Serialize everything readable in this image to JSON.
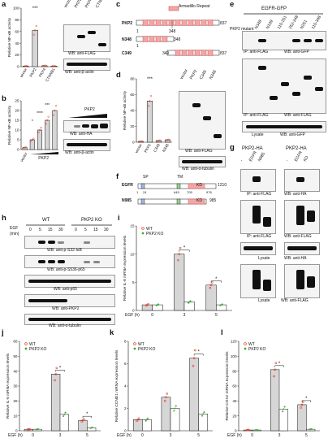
{
  "panels": {
    "a": {
      "letter": "a",
      "ylabel": "Relative NF-κB activity",
      "significance": "***",
      "blot_lanes": [
        "vector",
        "PKP2",
        "PKP4",
        "CTNNB1"
      ],
      "wb_top": "WB: anti-FLAG",
      "wb_bottom": "WB: anti-β-actin"
    },
    "b": {
      "letter": "b",
      "ylabel": "Relative NF-κB activity",
      "xlabel_vector": "vector",
      "xlabel_group": "PKP2",
      "sig": [
        "*",
        "****",
        "***"
      ],
      "blot_label": "PKP2",
      "wb_top": "WB: anti-HA",
      "wb_bottom": "WB: anti-β-actin"
    },
    "c": {
      "letter": "c",
      "legend": "Armadillo Repeat",
      "constructs": [
        {
          "name": "PKP2",
          "start": "1",
          "end": "837"
        },
        {
          "name": "N348",
          "start": "1",
          "end": "348"
        },
        {
          "name": "C349",
          "start": "349",
          "end": "837"
        }
      ],
      "tick_348": "348"
    },
    "d": {
      "letter": "d",
      "ylabel": "Relative NF-κB activity",
      "significance": "***",
      "blot_lanes": [
        "vector",
        "PKP2",
        "C349",
        "N348"
      ],
      "wb_top": "WB: anti-FLAG",
      "wb_bottom": "WB: anti-α-tubulin"
    },
    "e": {
      "letter": "e",
      "title": "EGFR-GFP",
      "row_label": "PKP2 mutant",
      "lanes": [
        "-",
        "N348",
        "N109",
        "110-251",
        "252-348",
        "N251",
        "110-348"
      ],
      "wb1": "IP: anti-FLAG",
      "wb1b": "WB: anti-GFP",
      "wb2": "IP: anti-FLAG",
      "wb2b": "WB: anti-FLAG",
      "wb3": "Lysate",
      "wb3b": "WB: anti-GFP"
    },
    "f": {
      "letter": "f",
      "constructs": [
        {
          "name": "EGFR",
          "start": "1",
          "end": "1210",
          "domain": "KD",
          "sp": "SP",
          "tm": "TM",
          "ticks": [
            "24",
            "645",
            "705",
            "978"
          ]
        },
        {
          "name": "N985",
          "end": "985",
          "domain": "KD"
        }
      ]
    },
    "g": {
      "letter": "g",
      "left_title": "PKP2-HA",
      "right_title": "PKP2-HA",
      "left_lanes": [
        "-",
        "EGFR",
        "N985"
      ],
      "right_lanes": [
        "-",
        "EGFR",
        "KD"
      ],
      "wb1": "IP: anti-FLAG",
      "wb1b": "WB: anti-HA",
      "wb2": "IP: anti-FLAG",
      "wb2b": "WB: anti-FLAG",
      "wb3": "Lysate",
      "wb3b": "WB: anti-HA",
      "wb4": "Lysate",
      "wb4b": "WB: anti-FLAG"
    },
    "h": {
      "letter": "h",
      "egf_label": "EGF",
      "min_label": "(min)",
      "wt": "WT",
      "ko": "PKP2 KO",
      "times": [
        "0",
        "5",
        "15",
        "30",
        "0",
        "5",
        "15",
        "30"
      ],
      "wb": [
        "WB: anti-p-S32-IκB",
        "WB: anti-p-S536-p65",
        "WB: anti-p65",
        "WB: anti-PKP2",
        "WB: anti-α-tubulin"
      ]
    }
  },
  "chart_data": [
    {
      "panel": "a",
      "type": "bar",
      "categories": [
        "vector",
        "PKP2",
        "PKP4",
        "CTNNB1"
      ],
      "values": [
        1,
        62,
        1.5,
        1
      ],
      "ylim": [
        0,
        100
      ],
      "ylabel": "Relative NF-κB activity",
      "yticks": [
        0,
        20,
        40,
        60,
        80,
        100
      ]
    },
    {
      "panel": "b",
      "type": "bar",
      "categories": [
        "vector",
        "1",
        "2",
        "3",
        "4"
      ],
      "values": [
        1,
        5,
        10,
        15,
        20
      ],
      "ylim": [
        0,
        25
      ],
      "ylabel": "Relative NF-κB activity",
      "yticks": [
        0,
        5,
        10,
        15,
        20,
        25
      ]
    },
    {
      "panel": "d",
      "type": "bar",
      "categories": [
        "vector",
        "PKP2",
        "C349",
        "N348"
      ],
      "values": [
        1,
        52,
        2,
        3
      ],
      "ylim": [
        0,
        80
      ],
      "ylabel": "Relative NF-κB activity",
      "yticks": [
        0,
        20,
        40,
        60,
        80
      ]
    },
    {
      "panel": "i",
      "type": "bar",
      "title": "",
      "ylabel": "Relative IL-8 mRNA expression levels",
      "xlabel": "EGF (h)",
      "categories": [
        "0",
        "3",
        "5"
      ],
      "ylim": [
        0,
        15
      ],
      "yticks": [
        0,
        5,
        10,
        15
      ],
      "series": [
        {
          "name": "WT",
          "values": [
            1,
            10,
            4.5
          ]
        },
        {
          "name": "PKP2 KO",
          "values": [
            1,
            1.5,
            1
          ]
        }
      ],
      "significance": [
        "*",
        "*"
      ]
    },
    {
      "panel": "j",
      "type": "bar",
      "title": "",
      "ylabel": "Relative IL-6 mRNA expression levels",
      "xlabel": "EGF (h)",
      "categories": [
        "0",
        "3",
        "5"
      ],
      "ylim": [
        0,
        60
      ],
      "yticks": [
        0,
        10,
        20,
        30,
        40,
        50,
        60
      ],
      "series": [
        {
          "name": "WT",
          "values": [
            1,
            38,
            7
          ]
        },
        {
          "name": "PKP2 KO",
          "values": [
            1,
            11,
            2
          ]
        }
      ],
      "significance": [
        "*",
        "*"
      ]
    },
    {
      "panel": "k",
      "type": "bar",
      "title": "",
      "ylabel": "Relative CCND1 mRNA expression levels",
      "xlabel": "EGF (h)",
      "categories": [
        "0",
        "3",
        "5"
      ],
      "ylim": [
        0,
        8
      ],
      "yticks": [
        0,
        2,
        4,
        6,
        8
      ],
      "series": [
        {
          "name": "WT",
          "values": [
            1,
            3,
            6.5
          ]
        },
        {
          "name": "PKP2 KO",
          "values": [
            1,
            2,
            1.5
          ]
        }
      ],
      "significance": [
        "*"
      ]
    },
    {
      "panel": "l",
      "type": "bar",
      "title": "",
      "ylabel": "Relative COX2 mRNA expression levels",
      "xlabel": "EGF (h)",
      "categories": [
        "0",
        "3",
        "5"
      ],
      "ylim": [
        0,
        120
      ],
      "yticks": [
        0,
        20,
        40,
        60,
        80,
        100,
        120
      ],
      "series": [
        {
          "name": "WT",
          "values": [
            1,
            82,
            35
          ]
        },
        {
          "name": "PKP2 KO",
          "values": [
            1,
            29,
            2
          ]
        }
      ],
      "significance": [
        "*",
        "*"
      ]
    }
  ],
  "colors": {
    "wt": "#e8412c",
    "ko": "#3aa935",
    "bar_wt": "#d6d6d6",
    "bar_ko": "#ffffff",
    "arm": "#f2a6a6",
    "kd": "#f2a6a6",
    "tm": "#8fd48f",
    "sp": "#9fb7e8"
  }
}
